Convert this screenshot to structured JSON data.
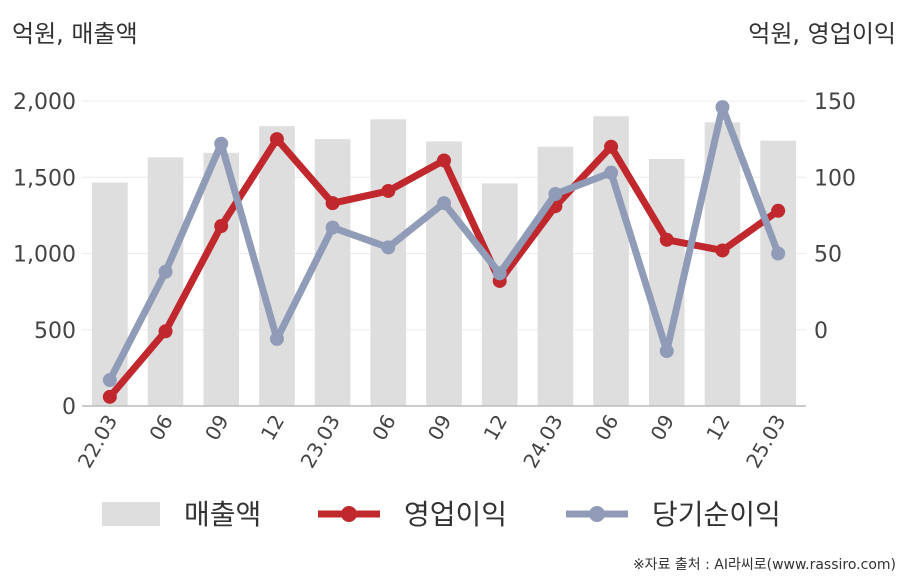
{
  "chart_data": {
    "type": "bar",
    "left_axis_unit": "억원, 매출액",
    "right_axis_unit": "억원, 영업이익",
    "categories": [
      "22.03",
      "06",
      "09",
      "12",
      "23.03",
      "06",
      "09",
      "12",
      "24.03",
      "06",
      "09",
      "12",
      "25.03"
    ],
    "left_ylim": [
      0,
      2000
    ],
    "left_ticks": [
      "0",
      "500",
      "1,000",
      "1,500",
      "2,000"
    ],
    "right_ylim": [
      -50,
      150
    ],
    "right_ticks": [
      "0",
      "50",
      "100",
      "150"
    ],
    "grid": true,
    "legend_position": "bottom",
    "series": [
      {
        "name": "매출액",
        "type": "bar",
        "axis": "left",
        "color": "#dedede",
        "values": [
          1465,
          1630,
          1660,
          1835,
          1750,
          1880,
          1735,
          1460,
          1700,
          1900,
          1620,
          1860,
          1740
        ]
      },
      {
        "name": "영업이익",
        "type": "line",
        "axis": "right",
        "color": "#c0282d",
        "values": [
          -44,
          -1,
          68,
          125,
          83,
          91,
          111,
          32,
          81,
          120,
          59,
          52,
          78
        ]
      },
      {
        "name": "당기순이익",
        "type": "line",
        "axis": "right",
        "color": "#8f9bb7",
        "values": [
          -33,
          38,
          122,
          -6,
          67,
          54,
          83,
          37,
          89,
          103,
          -14,
          146,
          50
        ]
      }
    ]
  },
  "source": "※자료 출처 : AI라씨로(www.rassiro.com)"
}
